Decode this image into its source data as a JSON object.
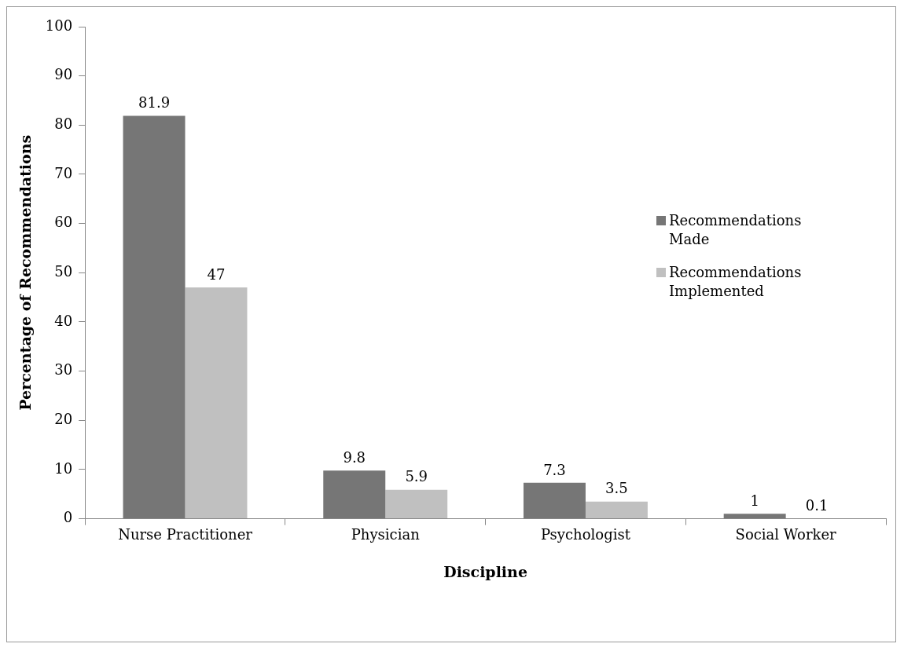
{
  "chart_data": {
    "type": "bar",
    "xlabel": "Discipline",
    "ylabel": "Percentage of Recommendations",
    "categories": [
      "Nurse Practitioner",
      "Physician",
      "Psychologist",
      "Social Worker"
    ],
    "series": [
      {
        "name": "Recommendations Made",
        "color": "#767676",
        "values": [
          81.9,
          9.8,
          7.3,
          1
        ]
      },
      {
        "name": "Recommendations Implemented",
        "color": "#c0c0c0",
        "values": [
          47,
          5.9,
          3.5,
          0.1
        ]
      }
    ],
    "ylim": [
      0,
      100
    ],
    "yticks": [
      0,
      10,
      20,
      30,
      40,
      50,
      60,
      70,
      80,
      90,
      100
    ],
    "grid": false,
    "legend": "right",
    "data_labels": true
  }
}
